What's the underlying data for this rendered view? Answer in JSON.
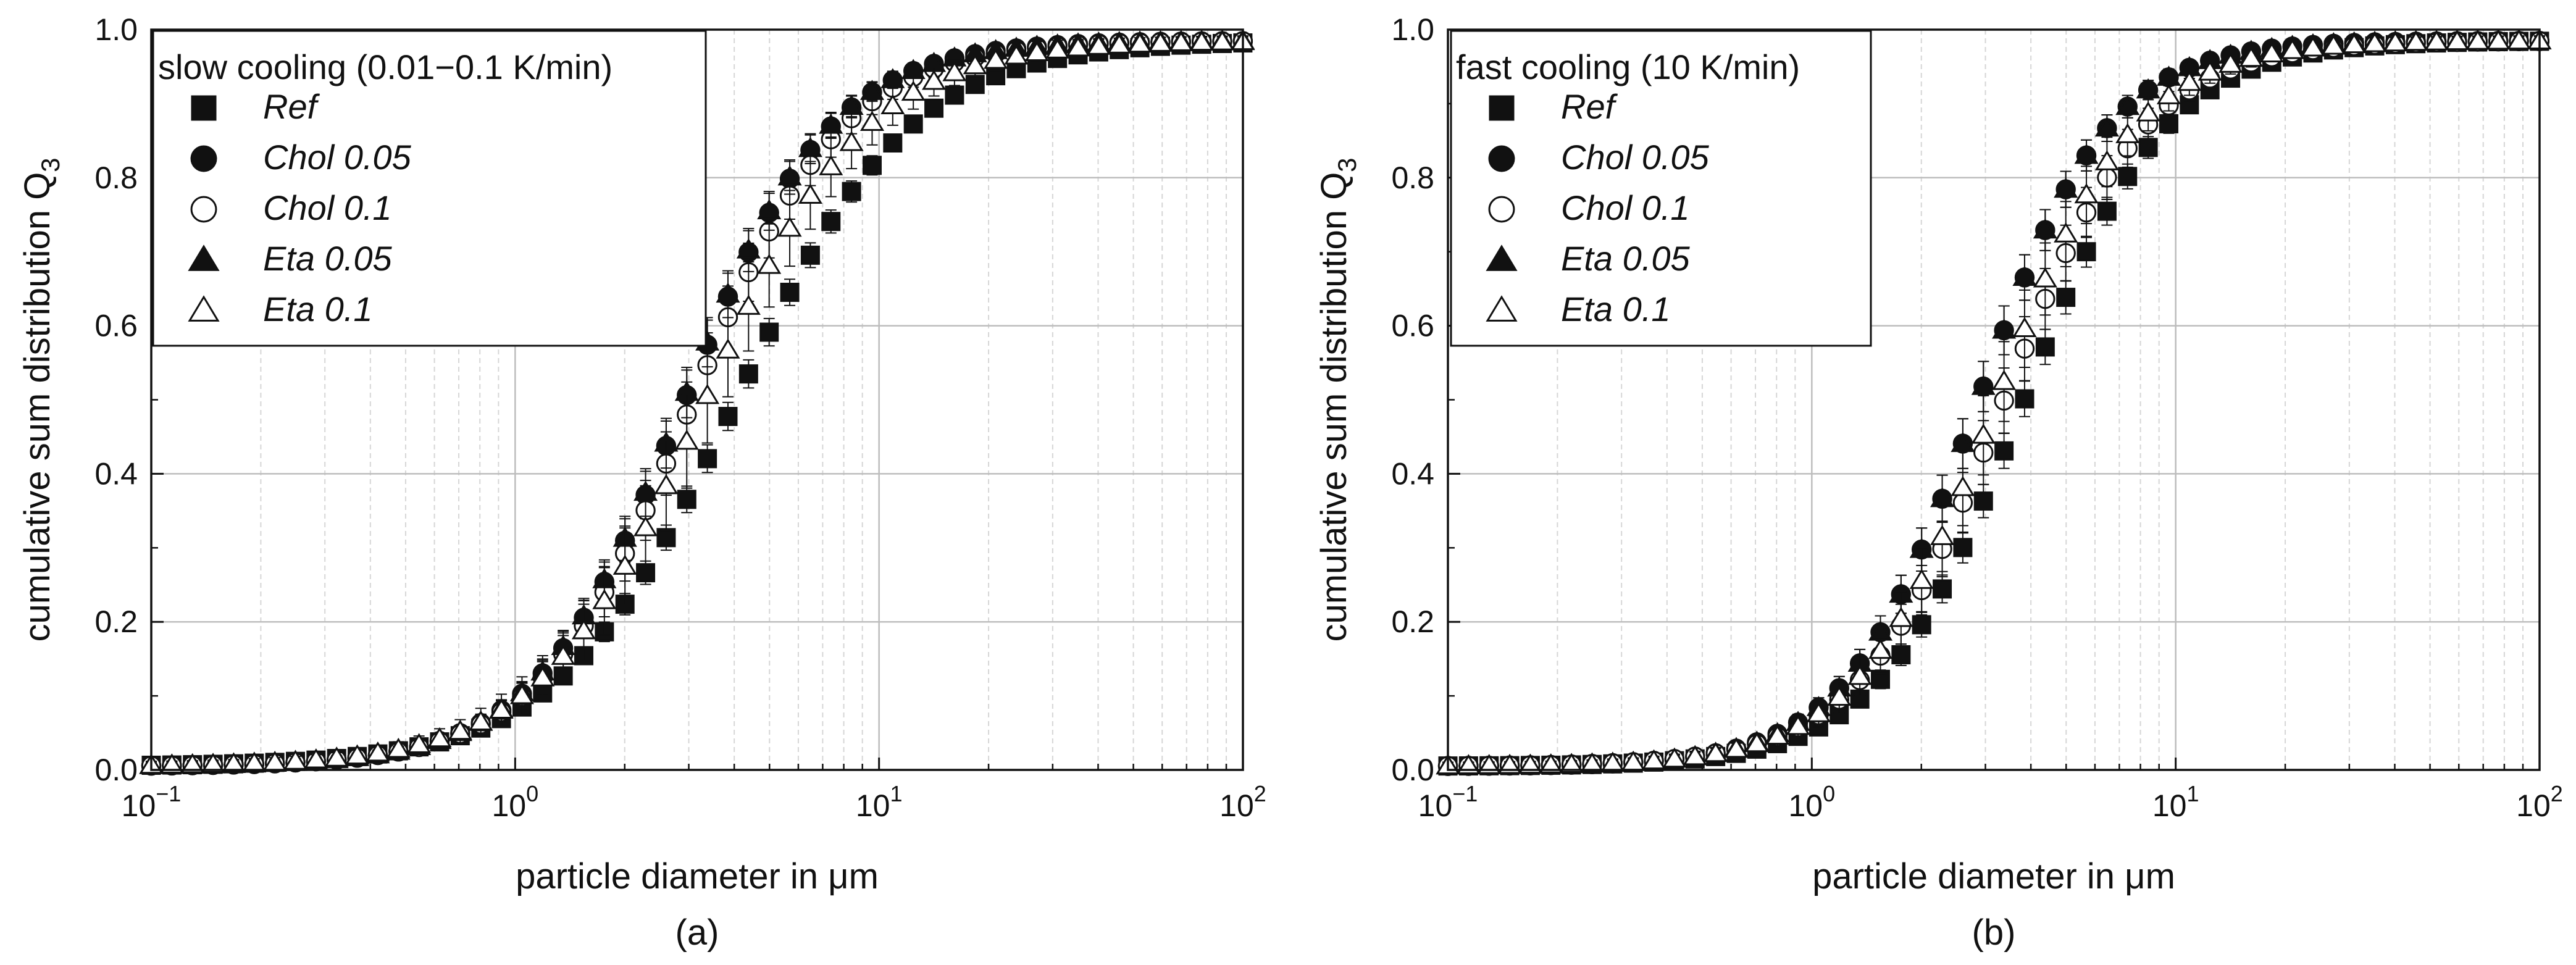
{
  "chart_data": [
    {
      "type": "scatter",
      "panel_label": "(a)",
      "xlabel": "particle diameter in μm",
      "ylabel": "cumulative sum distribution Q3",
      "ylabel_main": "cumulative sum distribution Q",
      "ylabel_sub": "3",
      "xscale": "log",
      "xlim": [
        0.1,
        100
      ],
      "ylim": [
        0,
        1.0
      ],
      "grid": true,
      "legend_title": "slow cooling (0.01−0.1 K/min)",
      "legend_position": "top-left",
      "x_ticks": [
        {
          "value": 0.1,
          "base": "10",
          "exp": "−1"
        },
        {
          "value": 1,
          "base": "10",
          "exp": "0"
        },
        {
          "value": 10,
          "base": "10",
          "exp": "1"
        },
        {
          "value": 100,
          "base": "10",
          "exp": "2"
        }
      ],
      "y_ticks": [
        "0.0",
        "0.2",
        "0.4",
        "0.6",
        "0.8",
        "1.0"
      ],
      "series": [
        {
          "name": "Ref",
          "marker": "square-filled",
          "x0": 4.0,
          "s": 0.86,
          "err": 0.015
        },
        {
          "name": "Chol 0.05",
          "marker": "circle-filled",
          "x0": 2.9,
          "s": 0.72,
          "err": 0.03
        },
        {
          "name": "Chol 0.1",
          "marker": "circle-open",
          "x0": 3.05,
          "s": 0.74,
          "err": 0.04
        },
        {
          "name": "Eta 0.05",
          "marker": "triangle-filled",
          "x0": 2.88,
          "s": 0.72,
          "err": 0.03
        },
        {
          "name": "Eta 0.1",
          "marker": "triangle-open",
          "x0": 3.3,
          "s": 0.8,
          "err": 0.06
        }
      ]
    },
    {
      "type": "scatter",
      "panel_label": "(b)",
      "xlabel": "particle diameter in μm",
      "ylabel": "cumulative sum distribution Q3",
      "ylabel_main": "cumulative sum distribution Q",
      "ylabel_sub": "3",
      "xscale": "log",
      "xlim": [
        0.1,
        100
      ],
      "ylim": [
        0,
        1.0
      ],
      "grid": true,
      "legend_title": "fast cooling (10 K/min)",
      "legend_position": "top-left",
      "x_ticks": [
        {
          "value": 0.1,
          "base": "10",
          "exp": "−1"
        },
        {
          "value": 1,
          "base": "10",
          "exp": "0"
        },
        {
          "value": 10,
          "base": "10",
          "exp": "1"
        },
        {
          "value": 100,
          "base": "10",
          "exp": "2"
        }
      ],
      "y_ticks": [
        "0.0",
        "0.2",
        "0.4",
        "0.6",
        "0.8",
        "1.0"
      ],
      "series": [
        {
          "name": "Ref",
          "marker": "square-filled",
          "x0": 3.8,
          "s": 0.7,
          "err": 0.02
        },
        {
          "name": "Chol 0.05",
          "marker": "circle-filled",
          "x0": 2.85,
          "s": 0.64,
          "err": 0.03
        },
        {
          "name": "Chol 0.1",
          "marker": "circle-open",
          "x0": 3.35,
          "s": 0.7,
          "err": 0.04
        },
        {
          "name": "Eta 0.05",
          "marker": "triangle-filled",
          "x0": 2.85,
          "s": 0.64,
          "err": 0.03
        },
        {
          "name": "Eta 0.1",
          "marker": "triangle-open",
          "x0": 3.2,
          "s": 0.68,
          "err": 0.05
        }
      ]
    }
  ]
}
